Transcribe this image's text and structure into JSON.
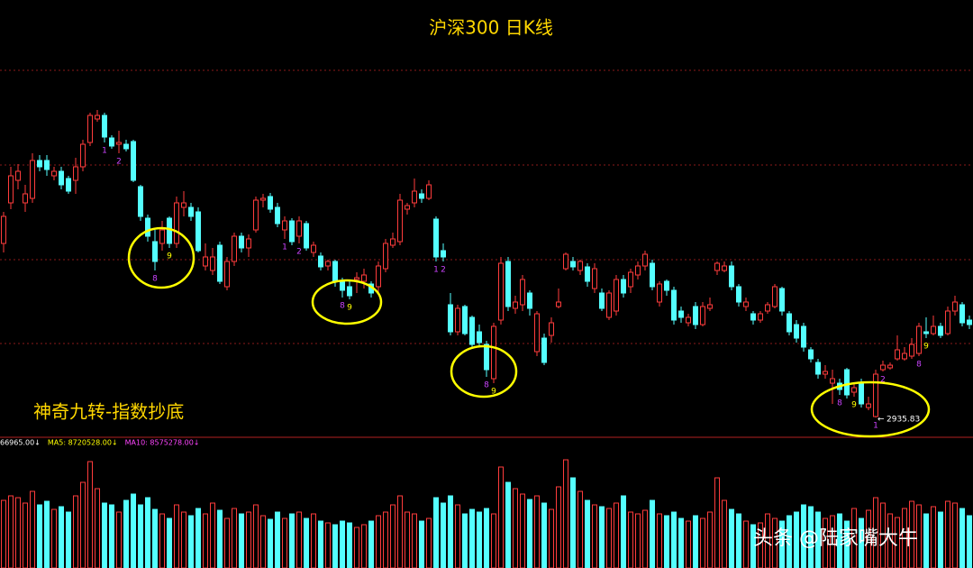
{
  "chart_data": {
    "type": "candlestick",
    "title": "沪深300 日K线",
    "annotation": "神奇九转-指数抄底",
    "watermark": "头条 @陆家嘴大牛",
    "up_color": "#ff3c3c",
    "down_color": "#54ffff",
    "ylim": [
      2892,
      3862
    ],
    "grid_y": [
      3706,
      3496,
      3286,
      3100
    ],
    "open": [
      3322,
      3412,
      3462,
      3412,
      3422,
      3506,
      3506,
      3472,
      3482,
      3466,
      3462,
      3492,
      3546,
      3598,
      3606,
      3556,
      3542,
      3542,
      3548,
      3448,
      3378,
      3326,
      3322,
      3378,
      3322,
      3402,
      3402,
      3392,
      3272,
      3262,
      3318,
      3226,
      3282,
      3338,
      3312,
      3352,
      3418,
      3426,
      3402,
      3352,
      3372,
      3338,
      3366,
      3302,
      3294,
      3272,
      3282,
      3238,
      3226,
      3242,
      3238,
      3232,
      3226,
      3266,
      3318,
      3326,
      3398,
      3412,
      3432,
      3422,
      3376,
      3306,
      3186,
      3126,
      3182,
      3158,
      3126,
      3098,
      3022,
      3152,
      3282,
      3178,
      3186,
      3212,
      3082,
      3112,
      3118,
      3182,
      3266,
      3282,
      3262,
      3270,
      3222,
      3212,
      3158,
      3172,
      3242,
      3226,
      3252,
      3272,
      3278,
      3192,
      3238,
      3218,
      3172,
      3146,
      3182,
      3142,
      3178,
      3262,
      3262,
      3272,
      3226,
      3182,
      3166,
      3152,
      3172,
      3182,
      3222,
      3166,
      3142,
      3138,
      3086,
      3058,
      3032,
      3012,
      3012,
      3042,
      2992,
      3012,
      2958,
      2938,
      3042,
      3046,
      3066,
      3066,
      3072,
      3078,
      3126,
      3122,
      3138,
      3122,
      3172,
      3186,
      3152
    ],
    "high": [
      3392,
      3492,
      3498,
      3452,
      3522,
      3518,
      3518,
      3492,
      3492,
      3472,
      3512,
      3552,
      3612,
      3618,
      3612,
      3562,
      3572,
      3552,
      3552,
      3452,
      3386,
      3352,
      3372,
      3382,
      3426,
      3438,
      3412,
      3402,
      3322,
      3312,
      3326,
      3292,
      3346,
      3346,
      3342,
      3426,
      3432,
      3434,
      3412,
      3382,
      3378,
      3382,
      3372,
      3326,
      3302,
      3286,
      3286,
      3246,
      3238,
      3258,
      3266,
      3238,
      3282,
      3332,
      3346,
      3432,
      3412,
      3466,
      3442,
      3462,
      3382,
      3322,
      3212,
      3186,
      3186,
      3162,
      3142,
      3106,
      3146,
      3292,
      3292,
      3206,
      3252,
      3218,
      3172,
      3122,
      3158,
      3222,
      3302,
      3292,
      3286,
      3278,
      3278,
      3222,
      3218,
      3252,
      3252,
      3266,
      3282,
      3306,
      3286,
      3238,
      3242,
      3226,
      3182,
      3166,
      3192,
      3192,
      3202,
      3282,
      3282,
      3282,
      3232,
      3202,
      3172,
      3172,
      3192,
      3232,
      3226,
      3172,
      3152,
      3146,
      3092,
      3066,
      3052,
      3042,
      3022,
      3046,
      3012,
      3022,
      2982,
      3042,
      3062,
      3058,
      3118,
      3092,
      3112,
      3146,
      3158,
      3162,
      3146,
      3182,
      3206,
      3192,
      3162
    ],
    "low": [
      3302,
      3398,
      3442,
      3392,
      3412,
      3482,
      3472,
      3462,
      3442,
      3432,
      3432,
      3482,
      3538,
      3592,
      3546,
      3532,
      3522,
      3526,
      3458,
      3372,
      3326,
      3262,
      3306,
      3312,
      3312,
      3382,
      3372,
      3302,
      3262,
      3252,
      3232,
      3218,
      3272,
      3302,
      3292,
      3346,
      3402,
      3390,
      3358,
      3332,
      3318,
      3322,
      3306,
      3292,
      3262,
      3262,
      3226,
      3202,
      3198,
      3212,
      3222,
      3202,
      3212,
      3258,
      3312,
      3318,
      3386,
      3402,
      3412,
      3418,
      3282,
      3282,
      3118,
      3118,
      3118,
      3092,
      3092,
      3026,
      3012,
      3142,
      3172,
      3166,
      3172,
      3162,
      3072,
      3052,
      3102,
      3178,
      3262,
      3262,
      3252,
      3226,
      3212,
      3172,
      3152,
      3162,
      3202,
      3212,
      3242,
      3262,
      3218,
      3182,
      3206,
      3142,
      3146,
      3138,
      3132,
      3138,
      3172,
      3252,
      3258,
      3218,
      3182,
      3172,
      3142,
      3146,
      3166,
      3178,
      3162,
      3118,
      3102,
      3082,
      3058,
      3022,
      3022,
      2966,
      2986,
      2978,
      2982,
      2958,
      2952,
      2935.83,
      3038,
      3042,
      3062,
      3062,
      3066,
      3072,
      3112,
      3118,
      3112,
      3118,
      3162,
      3138,
      3132
    ],
    "close": [
      3382,
      3472,
      3482,
      3432,
      3506,
      3492,
      3486,
      3482,
      3452,
      3438,
      3492,
      3542,
      3606,
      3606,
      3558,
      3538,
      3546,
      3532,
      3462,
      3382,
      3338,
      3282,
      3352,
      3322,
      3412,
      3412,
      3382,
      3306,
      3292,
      3292,
      3238,
      3282,
      3338,
      3312,
      3332,
      3418,
      3422,
      3398,
      3366,
      3372,
      3326,
      3372,
      3312,
      3318,
      3270,
      3282,
      3238,
      3218,
      3206,
      3246,
      3252,
      3212,
      3272,
      3322,
      3332,
      3418,
      3406,
      3438,
      3422,
      3452,
      3292,
      3292,
      3126,
      3178,
      3122,
      3098,
      3102,
      3042,
      3138,
      3278,
      3182,
      3192,
      3242,
      3178,
      3166,
      3058,
      3146,
      3192,
      3298,
      3270,
      3282,
      3238,
      3266,
      3178,
      3212,
      3242,
      3212,
      3258,
      3272,
      3298,
      3226,
      3232,
      3218,
      3152,
      3158,
      3158,
      3142,
      3182,
      3186,
      3278,
      3272,
      3226,
      3192,
      3192,
      3152,
      3166,
      3186,
      3226,
      3172,
      3126,
      3112,
      3092,
      3066,
      3032,
      3038,
      3022,
      2998,
      2986,
      3002,
      2966,
      2966,
      3032,
      3052,
      3052,
      3086,
      3078,
      3098,
      3138,
      3122,
      3138,
      3118,
      3172,
      3192,
      3146,
      3142
    ],
    "count_labels": {
      "14": {
        "label": "1",
        "color": "#cc44ff"
      },
      "16": {
        "label": "2",
        "color": "#cc44ff"
      },
      "21": {
        "label": "8",
        "color": "#cc44ff"
      },
      "23": {
        "label": "9",
        "color": "#ffff00"
      },
      "39": {
        "label": "1",
        "color": "#cc44ff"
      },
      "41": {
        "label": "2",
        "color": "#cc44ff"
      },
      "47": {
        "label": "8",
        "color": "#cc44ff"
      },
      "48": {
        "label": "9",
        "color": "#ffff00"
      },
      "60": {
        "label": "1",
        "color": "#cc44ff"
      },
      "61": {
        "label": "2",
        "color": "#cc44ff"
      },
      "67": {
        "label": "8",
        "color": "#cc44ff"
      },
      "68": {
        "label": "9",
        "color": "#ffff00"
      },
      "116": {
        "label": "8",
        "color": "#cc44ff"
      },
      "118": {
        "label": "9",
        "color": "#ffff00"
      },
      "121": {
        "label": "1",
        "color": "#cc44ff"
      },
      "122": {
        "label": "2",
        "color": "#cc44ff"
      },
      "127": {
        "label": "8",
        "color": "#cc44ff"
      },
      "128": {
        "label": "9",
        "color": "#ffff00"
      }
    },
    "volume": {
      "ylim": [
        0,
        19600000
      ],
      "labels": [
        {
          "text": "66965.00↓",
          "color": "#ffffff"
        },
        {
          "text": "MA5: 8720528.00↓",
          "color": "#ffff00"
        },
        {
          "text": "MA10: 8575278.00↓",
          "color": "#ff44ff"
        }
      ],
      "values": [
        10500000,
        11200000,
        10920000,
        10080000,
        11900000,
        9800000,
        10360000,
        9100000,
        9520000,
        8680000,
        11200000,
        13300000,
        16520000,
        12320000,
        10080000,
        9800000,
        8680000,
        10500000,
        11480000,
        9800000,
        10920000,
        9100000,
        8400000,
        7700000,
        9800000,
        8680000,
        8120000,
        9240000,
        8400000,
        10080000,
        8960000,
        7700000,
        9240000,
        8400000,
        8680000,
        9800000,
        8120000,
        7560000,
        8680000,
        7700000,
        8400000,
        8680000,
        7700000,
        8400000,
        7280000,
        7000000,
        6720000,
        7280000,
        7000000,
        6300000,
        6720000,
        7280000,
        8120000,
        8680000,
        9800000,
        11200000,
        8680000,
        8400000,
        7280000,
        7700000,
        10920000,
        10080000,
        11200000,
        9800000,
        8400000,
        9100000,
        8680000,
        9240000,
        8400000,
        15680000,
        13300000,
        12320000,
        11480000,
        10640000,
        11200000,
        10080000,
        9100000,
        12600000,
        16800000,
        14000000,
        11900000,
        10500000,
        9800000,
        9520000,
        9240000,
        10080000,
        11200000,
        8680000,
        8400000,
        8960000,
        10500000,
        8400000,
        8120000,
        8680000,
        7700000,
        7280000,
        8120000,
        7700000,
        8680000,
        14000000,
        10500000,
        9100000,
        8400000,
        7280000,
        6720000,
        7000000,
        8400000,
        7700000,
        7280000,
        8120000,
        8680000,
        9800000,
        9520000,
        8680000,
        7700000,
        8120000,
        8400000,
        7280000,
        9240000,
        7700000,
        8960000,
        10920000,
        10080000,
        8400000,
        7840000,
        9240000,
        10360000,
        9800000,
        8400000,
        9520000,
        8680000,
        10360000,
        10080000,
        9240000,
        8120000
      ]
    }
  }
}
